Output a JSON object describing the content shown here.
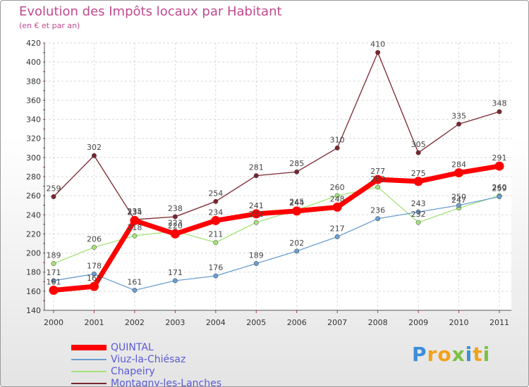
{
  "chart_data": {
    "type": "line",
    "title": "Evolution des Impôts locaux par Habitant",
    "subtitle": "(en € et par an)",
    "xlabel": "",
    "ylabel": "",
    "ylim": [
      140,
      420
    ],
    "yticks": [
      140,
      160,
      180,
      200,
      220,
      240,
      260,
      280,
      300,
      320,
      340,
      360,
      380,
      400,
      420
    ],
    "grid": true,
    "legend_position": "bottom-left",
    "x": [
      "2000",
      "2001",
      "2002",
      "2003",
      "2004",
      "2005",
      "2006",
      "2007",
      "2008",
      "2009",
      "2010",
      "2011"
    ],
    "series": [
      {
        "name": "Montagny-les-Lanches",
        "color": "#7a2630",
        "values": [
          259,
          302,
          235,
          238,
          254,
          281,
          285,
          310,
          410,
          305,
          335,
          348
        ]
      },
      {
        "name": "Chapeiry",
        "color": "#a6e27a",
        "values": [
          189,
          206,
          218,
          223,
          211,
          232,
          245,
          260,
          269,
          232,
          247,
          260
        ]
      },
      {
        "name": "Viuz-la-Chiésaz",
        "color": "#6a9ed0",
        "values": [
          171,
          178,
          161,
          171,
          176,
          189,
          202,
          217,
          236,
          243,
          250,
          259
        ]
      },
      {
        "name": "QUINTAL",
        "color": "#ff0000",
        "values": [
          161,
          165,
          234,
          220,
          234,
          241,
          244,
          248,
          277,
          275,
          284,
          291
        ]
      }
    ]
  },
  "legend": {
    "items": [
      {
        "label": "QUINTAL",
        "color": "#ff0000"
      },
      {
        "label": "Viuz-la-Chiésaz",
        "color": "#6a9ed0"
      },
      {
        "label": "Chapeiry",
        "color": "#a6e27a"
      },
      {
        "label": "Montagny-les-Lanches",
        "color": "#7a2630"
      }
    ]
  },
  "brand": {
    "letters": [
      "P",
      "r",
      "o",
      "x",
      "i",
      "t",
      "i"
    ],
    "colors": [
      "#3c8ed8",
      "#f2a21a",
      "#f2a21a",
      "#7bc142",
      "#3c8ed8",
      "#f2a21a",
      "#7bc142"
    ]
  }
}
